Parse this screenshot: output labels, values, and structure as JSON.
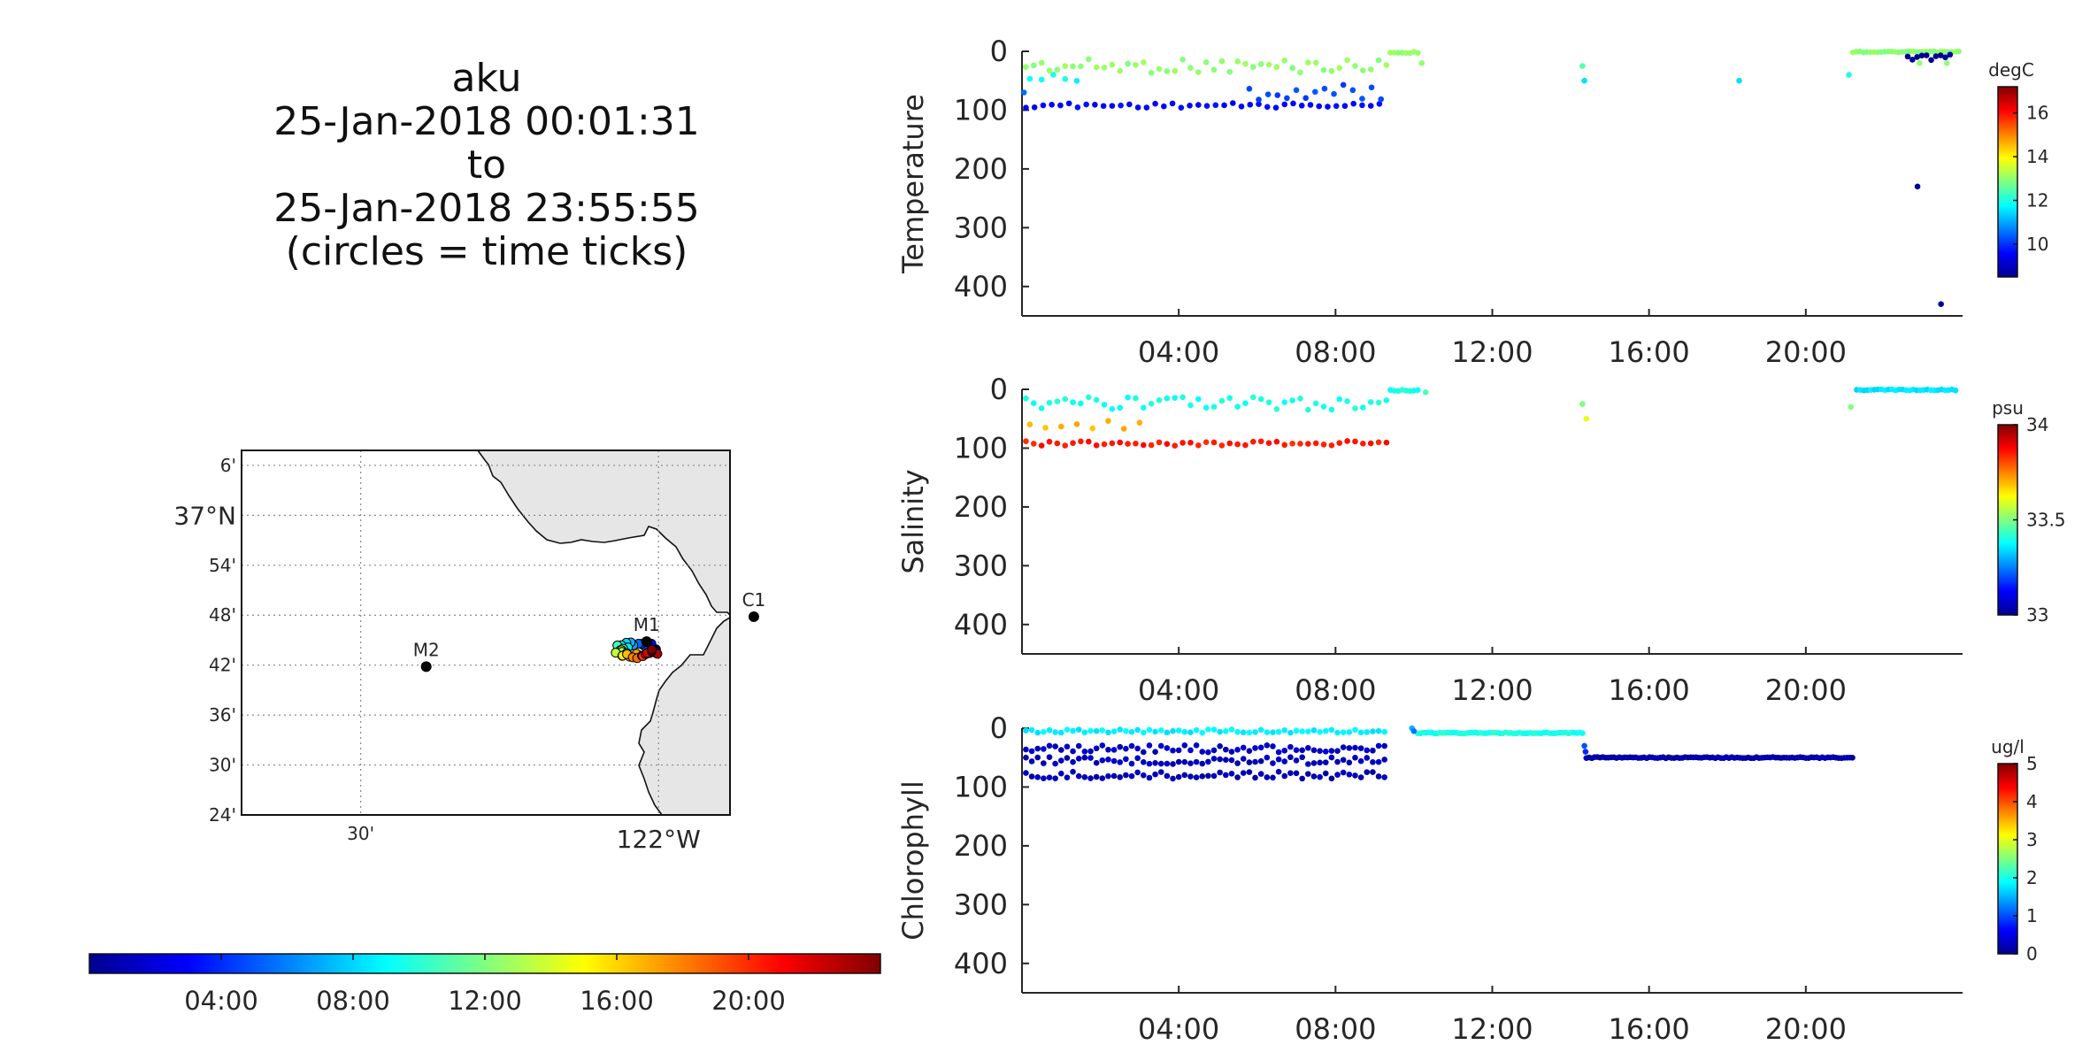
{
  "title": {
    "lines": [
      "aku",
      "25-Jan-2018 00:01:31",
      "to",
      "25-Jan-2018 23:55:55",
      "(circles = time ticks)"
    ]
  },
  "colors": {
    "jet": [
      "#00008f",
      "#0000ff",
      "#0080ff",
      "#00ffff",
      "#80ff80",
      "#ffff00",
      "#ff8000",
      "#ff0000",
      "#800000"
    ],
    "land": "#e6e6e6"
  },
  "map": {
    "lat_tick_labels": [
      "6'",
      "37°N",
      "54'",
      "48'",
      "42'",
      "36'",
      "30'",
      "24'"
    ],
    "lon_tick_labels": [
      "30'",
      "122°W"
    ],
    "stations": [
      {
        "name": "C1",
        "lon": -121.84,
        "lat": 36.797
      },
      {
        "name": "M1",
        "lon": -122.02,
        "lat": 36.747
      },
      {
        "name": "M2",
        "lon": -122.39,
        "lat": 36.697
      }
    ]
  },
  "time_colorbar": {
    "tick_labels": [
      "04:00",
      "08:00",
      "12:00",
      "16:00",
      "20:00"
    ],
    "range_hours": [
      0,
      24
    ]
  },
  "chart_data": [
    {
      "type": "scatter",
      "ylabel": "Temperature",
      "colorbar_label": "degC",
      "colorbar_ticks": [
        10,
        12,
        14,
        16
      ],
      "clim": [
        8.5,
        17.2
      ],
      "x_tick_labels": [
        "04:00",
        "08:00",
        "12:00",
        "16:00",
        "20:00"
      ],
      "xlim_hours": [
        0,
        24
      ],
      "ylim": [
        0,
        450
      ],
      "y_ticks": [
        0,
        100,
        200,
        300,
        400
      ],
      "y_reversed": true,
      "segments": [
        {
          "t0": 0.1,
          "t1": 9.3,
          "dt": 0.2,
          "z": 25,
          "jitter": 12,
          "value": 13.0
        },
        {
          "t0": 0.1,
          "t1": 9.3,
          "dt": 0.22,
          "z": 92,
          "jitter": 4,
          "value": 9.6
        },
        {
          "t0": 5.8,
          "t1": 9.3,
          "dt": 0.24,
          "z": 70,
          "jitter": 14,
          "value": 10.2
        },
        {
          "t0": 0.2,
          "t1": 1.6,
          "dt": 0.3,
          "z": 45,
          "jitter": 6,
          "value": 11.8
        },
        {
          "t0": 9.4,
          "t1": 10.1,
          "dt": 0.1,
          "z": 2,
          "jitter": 1,
          "value": 13.0
        },
        {
          "t0": 21.2,
          "t1": 23.9,
          "dt": 0.09,
          "z": 1,
          "jitter": 1,
          "value": 13.0
        },
        {
          "t0": 22.6,
          "t1": 23.7,
          "dt": 0.12,
          "z": 10,
          "jitter": 5,
          "value": 8.6
        }
      ],
      "points": [
        {
          "t": 10.2,
          "z": 20,
          "v": 13.0
        },
        {
          "t": 14.3,
          "z": 25,
          "v": 12.5
        },
        {
          "t": 14.35,
          "z": 50,
          "v": 11.5
        },
        {
          "t": 18.3,
          "z": 50,
          "v": 11.5
        },
        {
          "t": 21.1,
          "z": 40,
          "v": 12.0
        },
        {
          "t": 22.85,
          "z": 230,
          "v": 8.6
        },
        {
          "t": 23.45,
          "z": 430,
          "v": 8.6
        },
        {
          "t": 22.9,
          "z": 20,
          "v": 13.0
        },
        {
          "t": 23.6,
          "z": 20,
          "v": 13.0
        },
        {
          "t": 0.05,
          "z": 70,
          "v": 10.5
        }
      ]
    },
    {
      "type": "scatter",
      "ylabel": "Salinity",
      "colorbar_label": "psu",
      "colorbar_ticks": [
        33,
        33.5,
        34
      ],
      "clim": [
        33,
        34
      ],
      "x_tick_labels": [
        "04:00",
        "08:00",
        "12:00",
        "16:00",
        "20:00"
      ],
      "xlim_hours": [
        0,
        24
      ],
      "ylim": [
        0,
        450
      ],
      "y_ticks": [
        0,
        100,
        200,
        300,
        400
      ],
      "y_reversed": true,
      "segments": [
        {
          "t0": 0.1,
          "t1": 9.3,
          "dt": 0.2,
          "z": 25,
          "jitter": 12,
          "value": 33.4
        },
        {
          "t0": 0.1,
          "t1": 9.3,
          "dt": 0.2,
          "z": 92,
          "jitter": 4,
          "value": 33.85
        },
        {
          "t0": 0.2,
          "t1": 3.2,
          "dt": 0.4,
          "z": 60,
          "jitter": 8,
          "value": 33.7
        },
        {
          "t0": 9.4,
          "t1": 10.1,
          "dt": 0.1,
          "z": 2,
          "jitter": 1,
          "value": 33.4
        },
        {
          "t0": 21.3,
          "t1": 23.9,
          "dt": 0.09,
          "z": 1,
          "jitter": 1,
          "value": 33.35
        }
      ],
      "points": [
        {
          "t": 14.3,
          "z": 25,
          "v": 33.5
        },
        {
          "t": 14.4,
          "z": 50,
          "v": 33.6
        },
        {
          "t": 21.15,
          "z": 30,
          "v": 33.5
        },
        {
          "t": 10.3,
          "z": 5,
          "v": 33.45
        }
      ]
    },
    {
      "type": "scatter",
      "ylabel": "Chlorophyll",
      "colorbar_label": "ug/l",
      "colorbar_ticks": [
        0,
        1,
        2,
        3,
        4,
        5
      ],
      "clim": [
        0,
        5
      ],
      "x_tick_labels": [
        "04:00",
        "08:00",
        "12:00",
        "16:00",
        "20:00"
      ],
      "xlim_hours": [
        0,
        24
      ],
      "ylim": [
        0,
        450
      ],
      "y_ticks": [
        0,
        100,
        200,
        300,
        400
      ],
      "y_reversed": true,
      "segments": [
        {
          "t0": 0.1,
          "t1": 9.3,
          "dt": 0.15,
          "z": 5,
          "jitter": 3,
          "value": 1.8
        },
        {
          "t0": 0.1,
          "t1": 9.3,
          "dt": 0.15,
          "z": 35,
          "jitter": 6,
          "value": 0.3
        },
        {
          "t0": 0.1,
          "t1": 9.3,
          "dt": 0.15,
          "z": 55,
          "jitter": 6,
          "value": 0.25
        },
        {
          "t0": 0.1,
          "t1": 9.3,
          "dt": 0.15,
          "z": 80,
          "jitter": 6,
          "value": 0.2
        },
        {
          "t0": 10.1,
          "t1": 14.3,
          "dt": 0.07,
          "z": 8,
          "jitter": 1,
          "value": 2.0
        },
        {
          "t0": 14.4,
          "t1": 21.2,
          "dt": 0.07,
          "z": 50,
          "jitter": 1,
          "value": 0.15
        }
      ],
      "points": [
        {
          "t": 9.95,
          "z": 0,
          "v": 1.5
        },
        {
          "t": 10.0,
          "z": 5,
          "v": 1.2
        },
        {
          "t": 14.35,
          "z": 30,
          "v": 1.0
        },
        {
          "t": 14.38,
          "z": 40,
          "v": 0.8
        }
      ]
    }
  ]
}
